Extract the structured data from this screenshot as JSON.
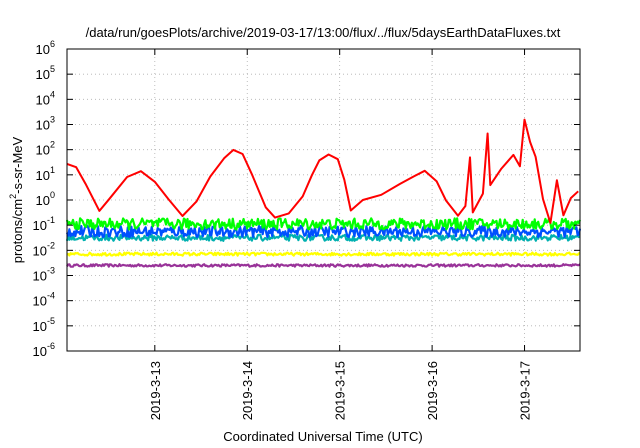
{
  "chart_data": {
    "type": "line",
    "title": "/data/run/goesPlots/archive/2019-03-17/13:00/flux/../flux/5daysEarthDataFluxes.txt",
    "xlabel": "Coordinated Universal Time (UTC)",
    "ylabel": "protons/cm2-s-sr-MeV",
    "ylabel_parts": {
      "before": "protons/cm",
      "sup": "2",
      "after": "-s-sr-MeV"
    },
    "y_scale": "log",
    "ylim_exponent": [
      -6,
      6
    ],
    "y_ticks": [
      {
        "base": "10",
        "exp": "-6",
        "value": -6
      },
      {
        "base": "10",
        "exp": "-5",
        "value": -5
      },
      {
        "base": "10",
        "exp": "-4",
        "value": -4
      },
      {
        "base": "10",
        "exp": "-3",
        "value": -3
      },
      {
        "base": "10",
        "exp": "-2",
        "value": -2
      },
      {
        "base": "10",
        "exp": "-1",
        "value": -1
      },
      {
        "base": "10",
        "exp": "0",
        "value": 0
      },
      {
        "base": "10",
        "exp": "1",
        "value": 1
      },
      {
        "base": "10",
        "exp": "2",
        "value": 2
      },
      {
        "base": "10",
        "exp": "3",
        "value": 3
      },
      {
        "base": "10",
        "exp": "4",
        "value": 4
      },
      {
        "base": "10",
        "exp": "5",
        "value": 5
      },
      {
        "base": "10",
        "exp": "6",
        "value": 6
      }
    ],
    "xlim_day": [
      12.05,
      17.6
    ],
    "x_ticks": [
      {
        "label": "2019-3-13",
        "day": 13
      },
      {
        "label": "2019-3-14",
        "day": 14
      },
      {
        "label": "2019-3-15",
        "day": 15
      },
      {
        "label": "2019-3-16",
        "day": 16
      },
      {
        "label": "2019-3-17",
        "day": 17
      }
    ],
    "grid": true,
    "series": [
      {
        "color": "#ff0000",
        "points": [
          [
            12.05,
            1.4
          ],
          [
            12.15,
            1.3
          ],
          [
            12.25,
            0.6
          ],
          [
            12.4,
            -0.4
          ],
          [
            12.5,
            0.0
          ],
          [
            12.7,
            0.9
          ],
          [
            12.85,
            1.1
          ],
          [
            13.0,
            0.7
          ],
          [
            13.15,
            0.0
          ],
          [
            13.3,
            -0.6
          ],
          [
            13.45,
            -0.1
          ],
          [
            13.6,
            0.9
          ],
          [
            13.75,
            1.7
          ],
          [
            13.85,
            2.0
          ],
          [
            13.95,
            1.8
          ],
          [
            14.05,
            1.0
          ],
          [
            14.2,
            -0.3
          ],
          [
            14.3,
            -0.7
          ],
          [
            14.45,
            -0.55
          ],
          [
            14.6,
            0.1
          ],
          [
            14.7,
            1.0
          ],
          [
            14.78,
            1.6
          ],
          [
            14.88,
            1.8
          ],
          [
            14.98,
            1.6
          ],
          [
            15.05,
            0.8
          ],
          [
            15.12,
            -0.4
          ],
          [
            15.25,
            0.0
          ],
          [
            15.45,
            0.2
          ],
          [
            15.65,
            0.6
          ],
          [
            15.8,
            0.9
          ],
          [
            15.92,
            1.15
          ],
          [
            16.05,
            0.7
          ],
          [
            16.15,
            0.0
          ],
          [
            16.28,
            -0.6
          ],
          [
            16.36,
            -0.2
          ],
          [
            16.41,
            1.7
          ],
          [
            16.44,
            -0.5
          ],
          [
            16.55,
            0.3
          ],
          [
            16.6,
            2.65
          ],
          [
            16.63,
            0.6
          ],
          [
            16.75,
            1.2
          ],
          [
            16.88,
            1.8
          ],
          [
            16.95,
            1.3
          ],
          [
            17.0,
            3.2
          ],
          [
            17.06,
            2.3
          ],
          [
            17.12,
            1.7
          ],
          [
            17.2,
            0.0
          ],
          [
            17.28,
            -0.9
          ],
          [
            17.35,
            0.8
          ],
          [
            17.42,
            -0.6
          ],
          [
            17.5,
            0.1
          ],
          [
            17.58,
            0.3
          ]
        ]
      },
      {
        "color": "#00ff00",
        "level": -0.95,
        "noise": 0.22
      },
      {
        "color": "#0050ff",
        "level": -1.25,
        "noise": 0.22
      },
      {
        "color": "#00b0b0",
        "level": -1.5,
        "noise": 0.12
      },
      {
        "color": "#ffff00",
        "level": -2.15,
        "noise": 0.06
      },
      {
        "color": "#993399",
        "level": -2.6,
        "noise": 0.05
      }
    ]
  }
}
